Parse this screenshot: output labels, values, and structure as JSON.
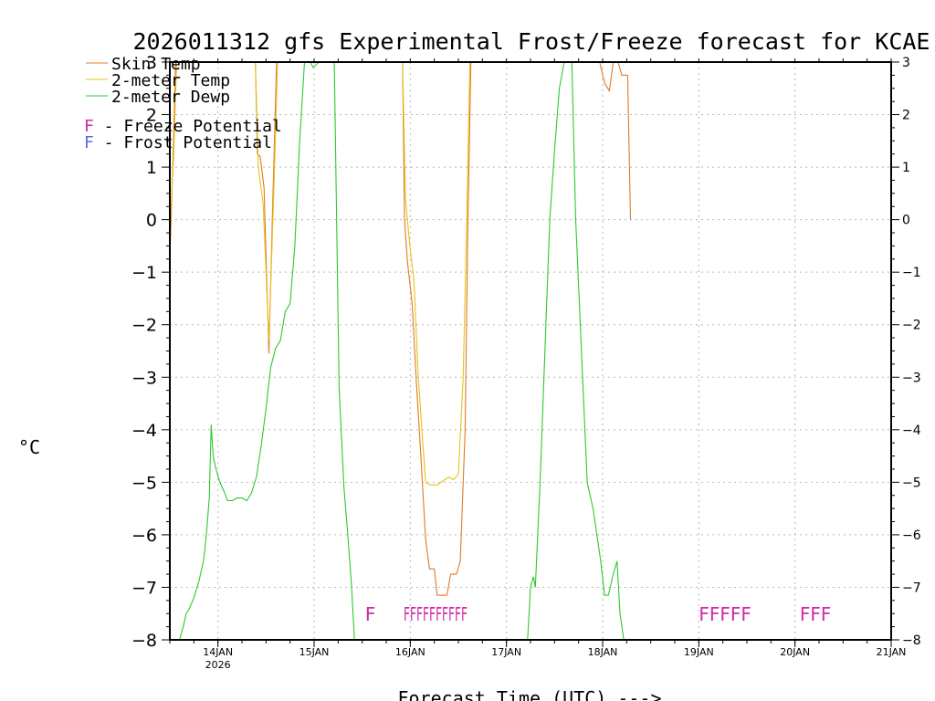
{
  "chart_data": {
    "type": "line",
    "title": "2026011312 gfs Experimental Frost/Freeze forecast for KCAE",
    "xlabel": "Forecast Time (UTC) --->",
    "ylabel": "°C",
    "xlim": [
      -0.5,
      7
    ],
    "ylim": [
      -8,
      3
    ],
    "y_ticks": [
      -8,
      -7,
      -6,
      -5,
      -4,
      -3,
      -2,
      -1,
      0,
      1,
      2,
      3
    ],
    "x_ticks": [
      {
        "x": 0,
        "label": "14JAN",
        "sublabel": "2026"
      },
      {
        "x": 1,
        "label": "15JAN",
        "sublabel": ""
      },
      {
        "x": 2,
        "label": "16JAN",
        "sublabel": ""
      },
      {
        "x": 3,
        "label": "17JAN",
        "sublabel": ""
      },
      {
        "x": 4,
        "label": "18JAN",
        "sublabel": ""
      },
      {
        "x": 5,
        "label": "19JAN",
        "sublabel": ""
      },
      {
        "x": 6,
        "label": "20JAN",
        "sublabel": ""
      },
      {
        "x": 7,
        "label": "21JAN",
        "sublabel": ""
      }
    ],
    "grid": true,
    "legend": [
      {
        "label": "Skin Temp",
        "color": "#e07a28"
      },
      {
        "label": "2-meter Temp",
        "color": "#e6c21c"
      },
      {
        "label": "2-meter Dewp",
        "color": "#2ec82e"
      }
    ],
    "potential_legend": [
      {
        "marker": "F",
        "label": " - Freeze Potential",
        "color": "#d02aa4"
      },
      {
        "marker": "F",
        "label": " - Frost Potential",
        "color": "#5a6ae0"
      }
    ],
    "series": [
      {
        "name": "Skin Temp",
        "color": "#e07a28",
        "segments": [
          [
            [
              -0.5,
              -0.75
            ],
            [
              -0.47,
              1.0
            ],
            [
              -0.44,
              3.0
            ]
          ],
          [
            [
              0.39,
              3.0
            ],
            [
              0.41,
              1.25
            ],
            [
              0.44,
              1.2
            ],
            [
              0.48,
              0.6
            ],
            [
              0.53,
              -2.55
            ],
            [
              0.57,
              0.3
            ],
            [
              0.61,
              3.0
            ]
          ],
          [
            [
              1.92,
              3.0
            ],
            [
              1.94,
              0.0
            ],
            [
              1.97,
              -0.8
            ],
            [
              2.02,
              -1.6
            ],
            [
              2.06,
              -3.0
            ],
            [
              2.11,
              -4.5
            ],
            [
              2.16,
              -6.1
            ],
            [
              2.2,
              -6.65
            ],
            [
              2.25,
              -6.65
            ],
            [
              2.28,
              -7.15
            ],
            [
              2.38,
              -7.15
            ],
            [
              2.42,
              -6.75
            ],
            [
              2.48,
              -6.75
            ],
            [
              2.52,
              -6.5
            ],
            [
              2.57,
              -4.0
            ],
            [
              2.6,
              0.0
            ],
            [
              2.63,
              3.0
            ]
          ],
          [
            [
              3.93,
              3.0
            ],
            [
              3.97,
              3.0
            ],
            [
              4.02,
              2.6
            ],
            [
              4.07,
              2.45
            ],
            [
              4.11,
              3.0
            ],
            [
              4.16,
              3.0
            ],
            [
              4.2,
              2.75
            ],
            [
              4.26,
              2.75
            ],
            [
              4.29,
              0.0
            ]
          ]
        ]
      },
      {
        "name": "2-meter Temp",
        "color": "#e6c21c",
        "segments": [
          [
            [
              -0.5,
              -0.2
            ],
            [
              -0.46,
              1.2
            ],
            [
              -0.43,
              3.0
            ]
          ],
          [
            [
              0.39,
              3.0
            ],
            [
              0.42,
              1.0
            ],
            [
              0.47,
              0.3
            ],
            [
              0.53,
              -2.3
            ],
            [
              0.58,
              0.5
            ],
            [
              0.62,
              3.0
            ]
          ],
          [
            [
              1.92,
              3.0
            ],
            [
              1.95,
              0.4
            ],
            [
              1.99,
              -0.4
            ],
            [
              2.04,
              -1.2
            ],
            [
              2.08,
              -2.9
            ],
            [
              2.12,
              -4.0
            ],
            [
              2.16,
              -5.0
            ],
            [
              2.2,
              -5.05
            ],
            [
              2.28,
              -5.05
            ],
            [
              2.36,
              -4.95
            ],
            [
              2.4,
              -4.9
            ],
            [
              2.45,
              -4.95
            ],
            [
              2.5,
              -4.85
            ],
            [
              2.55,
              -3.0
            ],
            [
              2.59,
              0.3
            ],
            [
              2.62,
              3.0
            ]
          ]
        ]
      },
      {
        "name": "2-meter Dewp",
        "color": "#2ec82e",
        "segments": [
          [
            [
              -0.4,
              -8.0
            ],
            [
              -0.36,
              -7.75
            ],
            [
              -0.33,
              -7.5
            ],
            [
              -0.3,
              -7.42
            ],
            [
              -0.25,
              -7.2
            ],
            [
              -0.2,
              -6.9
            ],
            [
              -0.15,
              -6.5
            ],
            [
              -0.12,
              -6.0
            ],
            [
              -0.09,
              -5.3
            ],
            [
              -0.07,
              -3.9
            ],
            [
              -0.05,
              -4.5
            ],
            [
              -0.02,
              -4.75
            ],
            [
              0.02,
              -5.0
            ],
            [
              0.07,
              -5.2
            ],
            [
              0.1,
              -5.35
            ],
            [
              0.15,
              -5.35
            ],
            [
              0.2,
              -5.3
            ],
            [
              0.25,
              -5.3
            ],
            [
              0.3,
              -5.35
            ],
            [
              0.35,
              -5.2
            ],
            [
              0.4,
              -4.9
            ],
            [
              0.45,
              -4.3
            ],
            [
              0.5,
              -3.6
            ],
            [
              0.55,
              -2.8
            ],
            [
              0.6,
              -2.45
            ],
            [
              0.65,
              -2.3
            ],
            [
              0.7,
              -1.75
            ],
            [
              0.75,
              -1.6
            ],
            [
              0.8,
              -0.5
            ],
            [
              0.85,
              1.5
            ],
            [
              0.9,
              3.0
            ],
            [
              0.96,
              3.0
            ],
            [
              0.99,
              2.9
            ],
            [
              1.05,
              3.0
            ]
          ],
          [
            [
              1.21,
              3.0
            ],
            [
              1.26,
              -3.2
            ],
            [
              1.31,
              -5.1
            ],
            [
              1.35,
              -6.0
            ],
            [
              1.39,
              -7.0
            ],
            [
              1.42,
              -8.0
            ]
          ],
          [
            [
              3.22,
              -8.0
            ],
            [
              3.25,
              -7.0
            ],
            [
              3.28,
              -6.8
            ],
            [
              3.3,
              -7.0
            ],
            [
              3.35,
              -5.0
            ],
            [
              3.4,
              -2.5
            ],
            [
              3.45,
              0.0
            ],
            [
              3.5,
              1.3
            ],
            [
              3.55,
              2.5
            ],
            [
              3.6,
              3.0
            ],
            [
              3.68,
              3.0
            ],
            [
              3.72,
              0.0
            ],
            [
              3.78,
              -2.5
            ],
            [
              3.84,
              -5.0
            ],
            [
              3.9,
              -5.5
            ],
            [
              3.94,
              -6.0
            ],
            [
              3.98,
              -6.5
            ],
            [
              4.02,
              -7.15
            ],
            [
              4.06,
              -7.15
            ],
            [
              4.11,
              -6.75
            ],
            [
              4.15,
              -6.5
            ],
            [
              4.18,
              -7.5
            ],
            [
              4.22,
              -8.0
            ]
          ]
        ]
      }
    ],
    "freeze_markers": [
      {
        "x": 1.53,
        "text": "F"
      },
      {
        "x": 1.93,
        "text": "FFFFFFFFFF"
      },
      {
        "x": 5.0,
        "text": "FFFFF"
      },
      {
        "x": 6.05,
        "text": "FFF"
      }
    ],
    "freeze_marker_y": -7.5,
    "freeze_color": "#d02aa4"
  }
}
